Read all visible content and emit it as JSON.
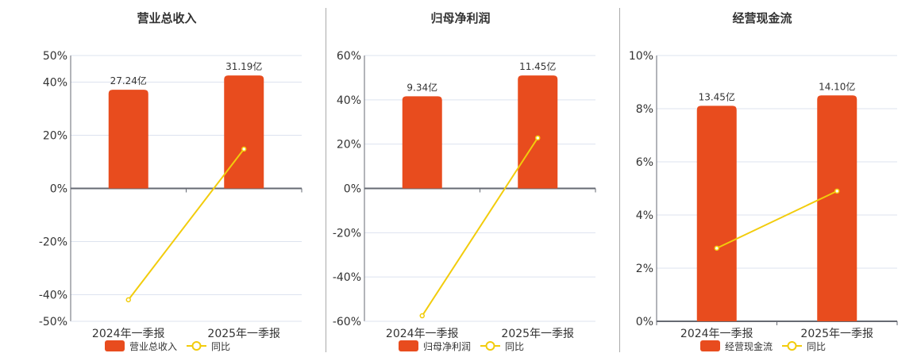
{
  "colors": {
    "bar": "#e84c1e",
    "line": "#f2cc0c",
    "grid": "#dde3ef",
    "axis": "#666a73",
    "text": "#333333"
  },
  "chart_data": [
    {
      "type": "bar+line",
      "title": "营业总收入",
      "categories": [
        "2024年一季报",
        "2025年一季报"
      ],
      "bar_series": {
        "name": "营业总收入",
        "values": [
          27.24,
          31.19
        ],
        "labels": [
          "27.24亿",
          "31.19亿"
        ],
        "unit": "亿"
      },
      "line_series": {
        "name": "同比",
        "values": [
          -41.9,
          14.8
        ],
        "unit": "%"
      },
      "ylim": [
        -50,
        50
      ],
      "yticks": [
        "50%",
        "40%",
        "20%",
        "0%",
        "-20%",
        "-40%",
        "-50%"
      ],
      "ytick_values": [
        50,
        40,
        20,
        0,
        -20,
        -40,
        -50
      ],
      "grid": true,
      "legend": "bottom"
    },
    {
      "type": "bar+line",
      "title": "归母净利润",
      "categories": [
        "2024年一季报",
        "2025年一季报"
      ],
      "bar_series": {
        "name": "归母净利润",
        "values": [
          9.34,
          11.45
        ],
        "labels": [
          "9.34亿",
          "11.45亿"
        ],
        "unit": "亿"
      },
      "line_series": {
        "name": "同比",
        "values": [
          -57.5,
          22.8
        ],
        "unit": "%"
      },
      "ylim": [
        -60,
        60
      ],
      "yticks": [
        "60%",
        "40%",
        "20%",
        "0%",
        "-20%",
        "-40%",
        "-60%"
      ],
      "ytick_values": [
        60,
        40,
        20,
        0,
        -20,
        -40,
        -60
      ],
      "grid": true,
      "legend": "bottom"
    },
    {
      "type": "bar+line",
      "title": "经营现金流",
      "categories": [
        "2024年一季报",
        "2025年一季报"
      ],
      "bar_series": {
        "name": "经营现金流",
        "values": [
          13.45,
          14.1
        ],
        "labels": [
          "13.45亿",
          "14.10亿"
        ],
        "unit": "亿"
      },
      "line_series": {
        "name": "同比",
        "values": [
          2.75,
          4.9
        ],
        "unit": "%"
      },
      "ylim": [
        0,
        10
      ],
      "yticks": [
        "10%",
        "8%",
        "6%",
        "4%",
        "2%",
        "0%"
      ],
      "ytick_values": [
        10,
        8,
        6,
        4,
        2,
        0
      ],
      "grid": true,
      "legend": "bottom"
    }
  ]
}
